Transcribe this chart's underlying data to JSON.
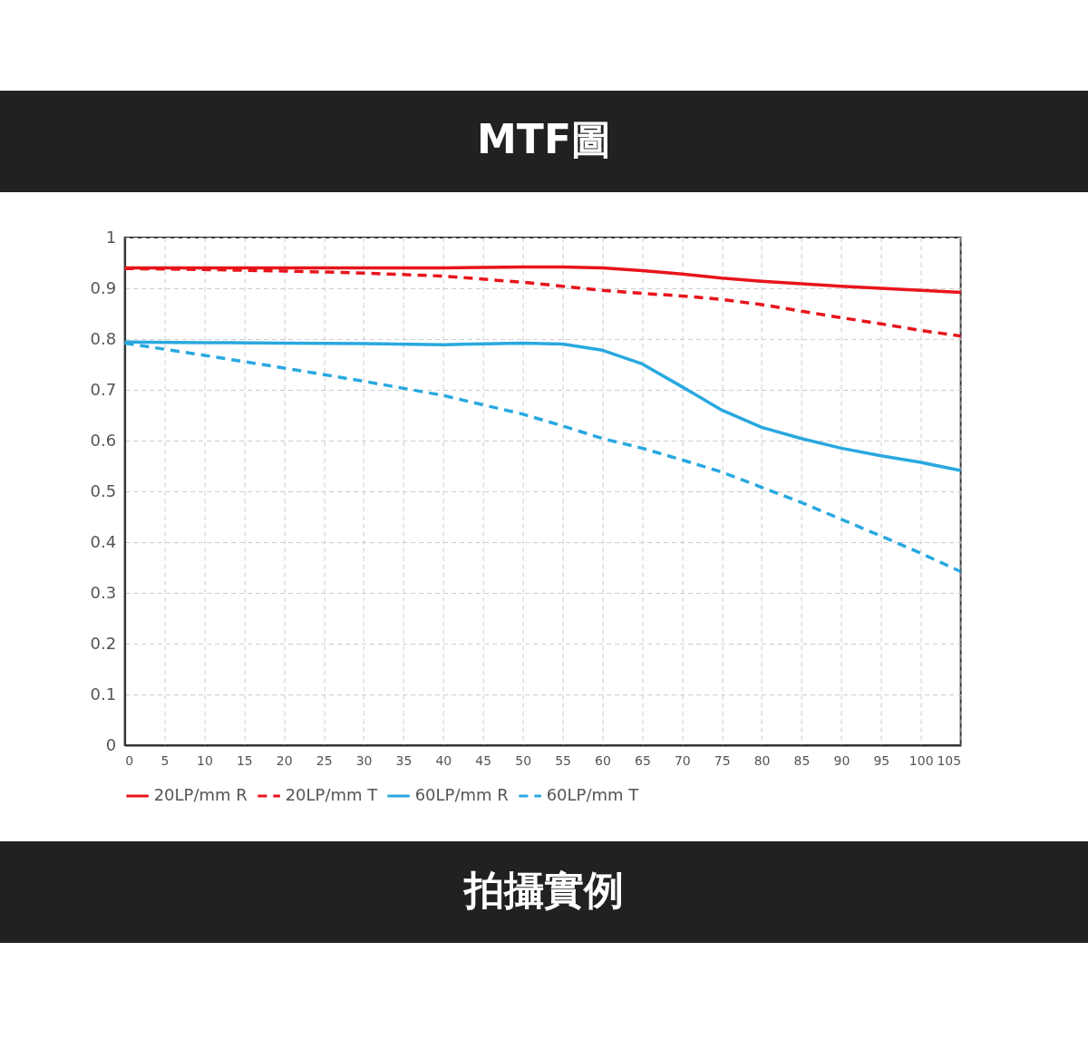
{
  "chart_data": {
    "type": "line",
    "title": "MTF圖",
    "annotations": [
      "拍攝實例"
    ],
    "x": [
      0,
      10,
      20,
      30,
      40,
      50,
      55,
      60,
      65,
      70,
      75,
      80,
      85,
      90,
      95,
      100,
      105
    ],
    "xlim": [
      0,
      105
    ],
    "xticks": [
      0,
      5,
      10,
      15,
      20,
      25,
      30,
      35,
      40,
      45,
      50,
      55,
      60,
      65,
      70,
      75,
      80,
      85,
      90,
      95,
      100,
      105
    ],
    "ylim": [
      0,
      1
    ],
    "yticks": [
      0,
      0.1,
      0.2,
      0.3,
      0.4,
      0.5,
      0.6,
      0.7,
      0.8,
      0.9,
      1
    ],
    "grid": true,
    "legend": "bottom",
    "marker": "none",
    "series": [
      {
        "name": "20LP/mm R",
        "color": "#e8141b",
        "line_style": "solid",
        "values": [
          0.94,
          0.94,
          0.94,
          0.94,
          0.94,
          0.942,
          0.942,
          0.94,
          0.935,
          0.928,
          0.92,
          0.914,
          0.909,
          0.904,
          0.9,
          0.896,
          0.892
        ]
      },
      {
        "name": "20LP/mm T",
        "color": "#e8141b",
        "line_style": "dashed",
        "values": [
          0.939,
          0.937,
          0.934,
          0.93,
          0.924,
          0.912,
          0.904,
          0.896,
          0.89,
          0.885,
          0.878,
          0.868,
          0.855,
          0.842,
          0.83,
          0.817,
          0.806
        ]
      },
      {
        "name": "60LP/mm R",
        "color": "#29a8e0",
        "line_style": "solid",
        "values": [
          0.794,
          0.793,
          0.792,
          0.791,
          0.789,
          0.792,
          0.79,
          0.778,
          0.751,
          0.706,
          0.66,
          0.626,
          0.604,
          0.585,
          0.57,
          0.557,
          0.541
        ]
      },
      {
        "name": "60LP/mm T",
        "color": "#29a8e0",
        "line_style": "dashed",
        "values": [
          0.792,
          0.768,
          0.743,
          0.717,
          0.689,
          0.652,
          0.629,
          0.604,
          0.585,
          0.562,
          0.538,
          0.508,
          0.478,
          0.445,
          0.412,
          0.378,
          0.342
        ]
      }
    ]
  }
}
